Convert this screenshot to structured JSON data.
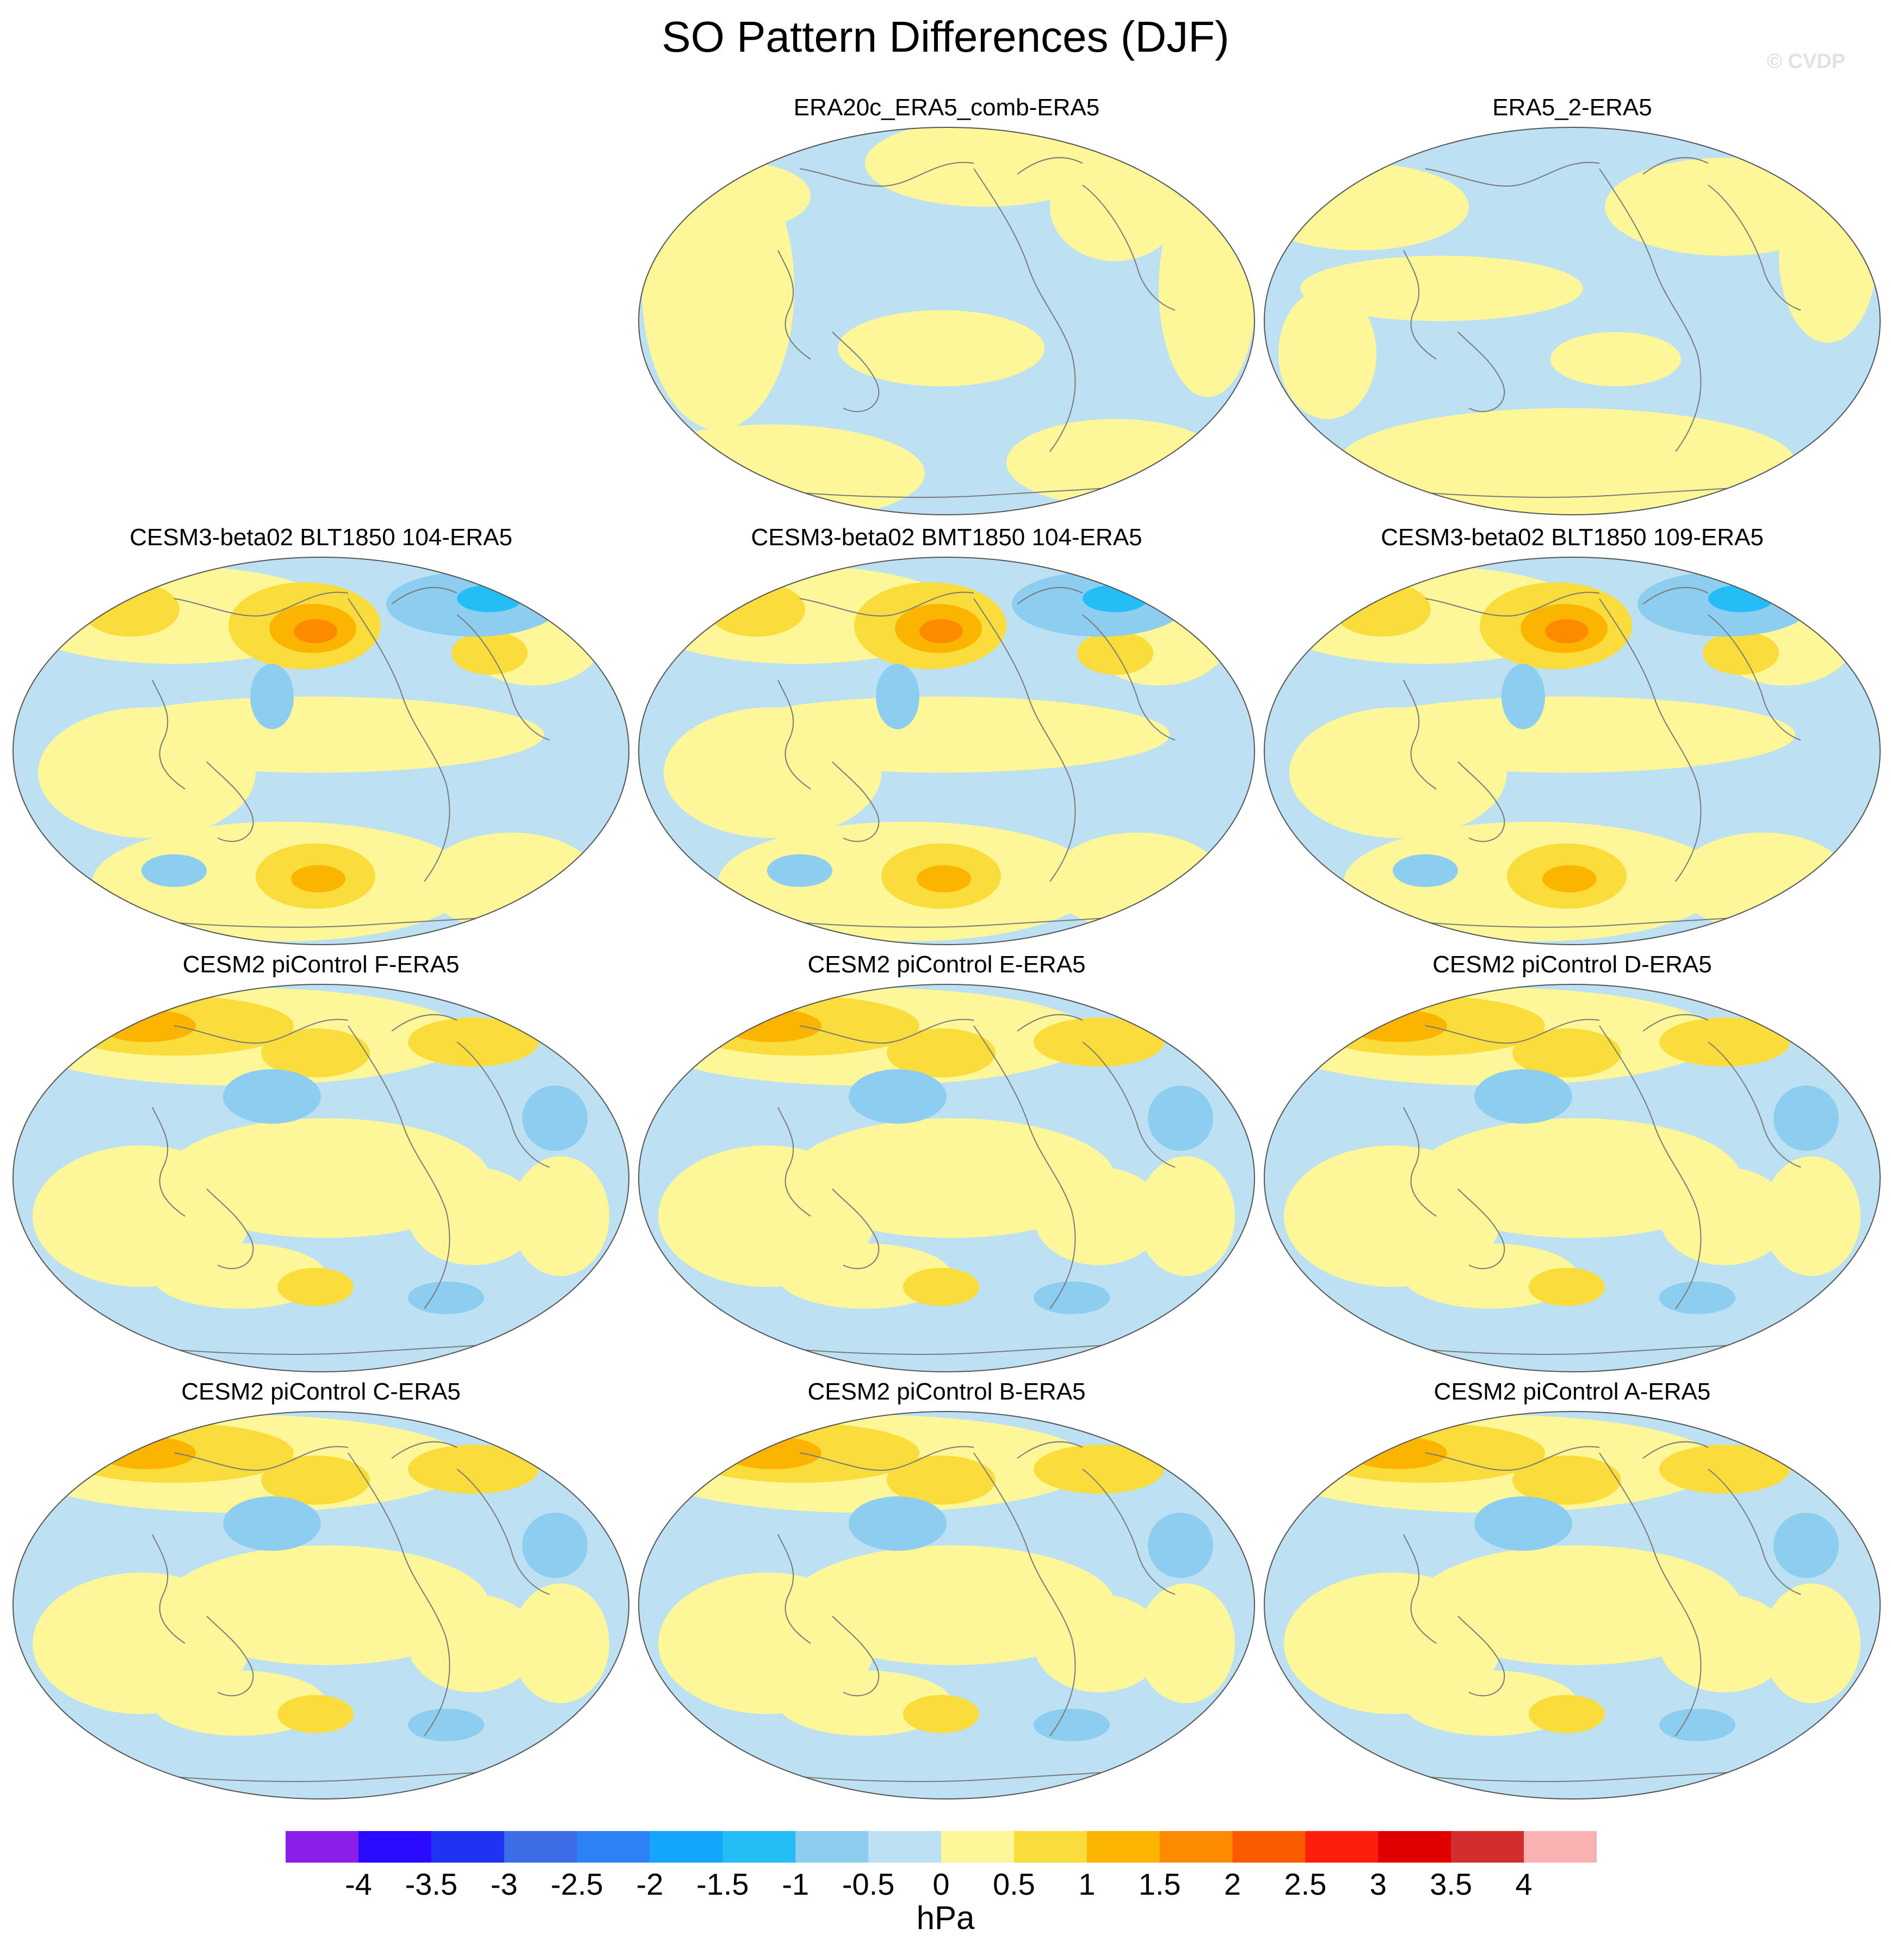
{
  "figure": {
    "title": "SO Pattern Differences (DJF)",
    "credit": "© CVDP"
  },
  "panels": [
    {
      "label": "ERA20c_ERA5_comb-ERA5",
      "pattern": "era20c"
    },
    {
      "label": "ERA5_2-ERA5",
      "pattern": "era5_2"
    },
    {
      "label": "CESM3-beta02 BLT1850 104-ERA5",
      "pattern": "cesm3"
    },
    {
      "label": "CESM3-beta02 BMT1850 104-ERA5",
      "pattern": "cesm3"
    },
    {
      "label": "CESM3-beta02 BLT1850 109-ERA5",
      "pattern": "cesm3"
    },
    {
      "label": "CESM2 piControl F-ERA5",
      "pattern": "cesm2"
    },
    {
      "label": "CESM2 piControl E-ERA5",
      "pattern": "cesm2"
    },
    {
      "label": "CESM2 piControl D-ERA5",
      "pattern": "cesm2"
    },
    {
      "label": "CESM2 piControl C-ERA5",
      "pattern": "cesm2"
    },
    {
      "label": "CESM2 piControl B-ERA5",
      "pattern": "cesm2"
    },
    {
      "label": "CESM2 piControl A-ERA5",
      "pattern": "cesm2"
    }
  ],
  "colorbar": {
    "units": "hPa",
    "ticks": [
      "-4",
      "-3.5",
      "-3",
      "-2.5",
      "-2",
      "-1.5",
      "-1",
      "-0.5",
      "0",
      "0.5",
      "1",
      "1.5",
      "2",
      "2.5",
      "3",
      "3.5",
      "4"
    ],
    "colors": [
      "#8b1fe8",
      "#2a0bff",
      "#2133f2",
      "#3e6ce6",
      "#2d82f7",
      "#14a6fa",
      "#25bdf5",
      "#8ccdf0",
      "#bde1f2",
      "#fdf79a",
      "#fadc3a",
      "#fbb500",
      "#fe8a00",
      "#fc5a00",
      "#fe1e0c",
      "#e00000",
      "#d32d2d",
      "#f9b1b1"
    ]
  }
}
